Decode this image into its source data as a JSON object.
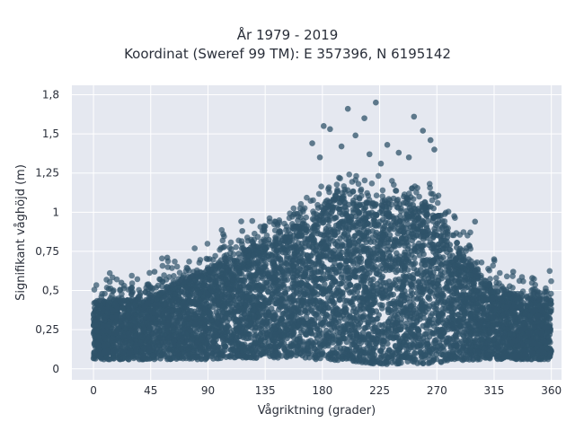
{
  "chart_data": {
    "type": "scatter",
    "title_line1": "År 1979 - 2019",
    "title_line2": "Koordinat (Sweref 99 TM): E 357396, N 6195142",
    "xlabel": "Vågriktning (grader)",
    "ylabel": "Signifikant våghöjd (m)",
    "xlim": [
      -17,
      368
    ],
    "ylim": [
      -0.07,
      1.81
    ],
    "x_ticks": [
      0,
      45,
      90,
      135,
      180,
      225,
      270,
      315,
      360
    ],
    "x_tick_labels": [
      "0",
      "45",
      "90",
      "135",
      "180",
      "225",
      "270",
      "315",
      "360"
    ],
    "y_ticks": [
      0,
      0.25,
      0.5,
      0.75,
      1,
      1.25,
      1.5,
      1.75
    ],
    "y_tick_labels": [
      "0",
      "0,25",
      "0,5",
      "0,75",
      "1",
      "1,25",
      "1,5",
      "1,8"
    ],
    "grid": true,
    "legend": "none",
    "marker_color": "#2f5369",
    "plot_background": "#e5e8f0",
    "envelope": {
      "x": [
        0,
        15,
        30,
        45,
        60,
        75,
        90,
        105,
        120,
        135,
        150,
        165,
        180,
        195,
        210,
        225,
        240,
        255,
        270,
        285,
        300,
        315,
        330,
        345,
        360
      ],
      "y_max": [
        0.43,
        0.44,
        0.45,
        0.46,
        0.52,
        0.58,
        0.64,
        0.7,
        0.76,
        0.82,
        0.86,
        0.92,
        1.05,
        1.1,
        1.07,
        1.04,
        1.05,
        1.08,
        1.0,
        0.82,
        0.62,
        0.52,
        0.48,
        0.45,
        0.44
      ],
      "y_min": [
        0.06,
        0.06,
        0.06,
        0.06,
        0.06,
        0.06,
        0.06,
        0.07,
        0.07,
        0.07,
        0.07,
        0.06,
        0.06,
        0.05,
        0.04,
        0.03,
        0.03,
        0.03,
        0.04,
        0.05,
        0.06,
        0.06,
        0.06,
        0.06,
        0.06
      ]
    },
    "notable_points": [
      {
        "x": 200,
        "y": 1.66
      },
      {
        "x": 222,
        "y": 1.7
      },
      {
        "x": 252,
        "y": 1.61
      },
      {
        "x": 181,
        "y": 1.55
      },
      {
        "x": 213,
        "y": 1.6
      },
      {
        "x": 186,
        "y": 1.53
      },
      {
        "x": 259,
        "y": 1.52
      },
      {
        "x": 206,
        "y": 1.49
      },
      {
        "x": 172,
        "y": 1.44
      },
      {
        "x": 231,
        "y": 1.43
      },
      {
        "x": 265,
        "y": 1.46
      },
      {
        "x": 240,
        "y": 1.38
      },
      {
        "x": 195,
        "y": 1.42
      },
      {
        "x": 248,
        "y": 1.35
      },
      {
        "x": 217,
        "y": 1.37
      },
      {
        "x": 268,
        "y": 1.4
      },
      {
        "x": 178,
        "y": 1.35
      },
      {
        "x": 226,
        "y": 1.31
      },
      {
        "x": 300,
        "y": 0.94
      },
      {
        "x": 117,
        "y": 0.88
      },
      {
        "x": 135,
        "y": 0.91
      },
      {
        "x": 102,
        "y": 0.86
      },
      {
        "x": 58,
        "y": 0.71
      },
      {
        "x": 48,
        "y": 0.62
      },
      {
        "x": 22,
        "y": 0.55
      },
      {
        "x": 12,
        "y": 0.51
      },
      {
        "x": 330,
        "y": 0.62
      },
      {
        "x": 315,
        "y": 0.7
      },
      {
        "x": 345,
        "y": 0.58
      },
      {
        "x": 356,
        "y": 0.45
      }
    ]
  }
}
